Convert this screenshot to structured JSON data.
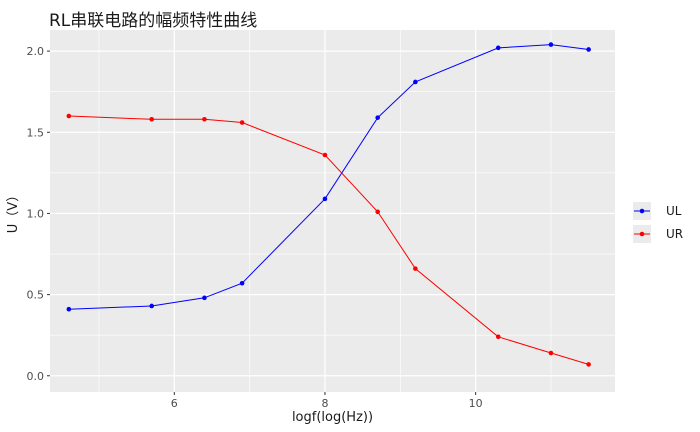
{
  "chart_data": {
    "type": "line",
    "title": "RL串联电路的幅频特性曲线",
    "xlabel": "logf(log(Hz))",
    "ylabel": "U（V）",
    "xlim": [
      4.35,
      11.85
    ],
    "ylim": [
      -0.1,
      2.13
    ],
    "xticks": [
      6,
      8,
      10
    ],
    "xtick_labels": [
      "6",
      "8",
      "10"
    ],
    "yticks": [
      0.0,
      0.5,
      1.0,
      1.5,
      2.0
    ],
    "ytick_labels": [
      "0.0",
      "0.5",
      "1.0",
      "1.5",
      "2.0"
    ],
    "grid": true,
    "legend_position": "right",
    "x": [
      4.6,
      5.7,
      6.4,
      6.9,
      8.0,
      8.7,
      9.2,
      10.3,
      11.0,
      11.5
    ],
    "series": [
      {
        "name": "UL",
        "color": "#0000ff",
        "values": [
          0.41,
          0.43,
          0.48,
          0.57,
          1.09,
          1.59,
          1.81,
          2.02,
          2.04,
          2.01
        ]
      },
      {
        "name": "UR",
        "color": "#ff0000",
        "values": [
          1.6,
          1.58,
          1.58,
          1.56,
          1.36,
          1.01,
          0.66,
          0.24,
          0.14,
          0.07
        ]
      }
    ]
  }
}
